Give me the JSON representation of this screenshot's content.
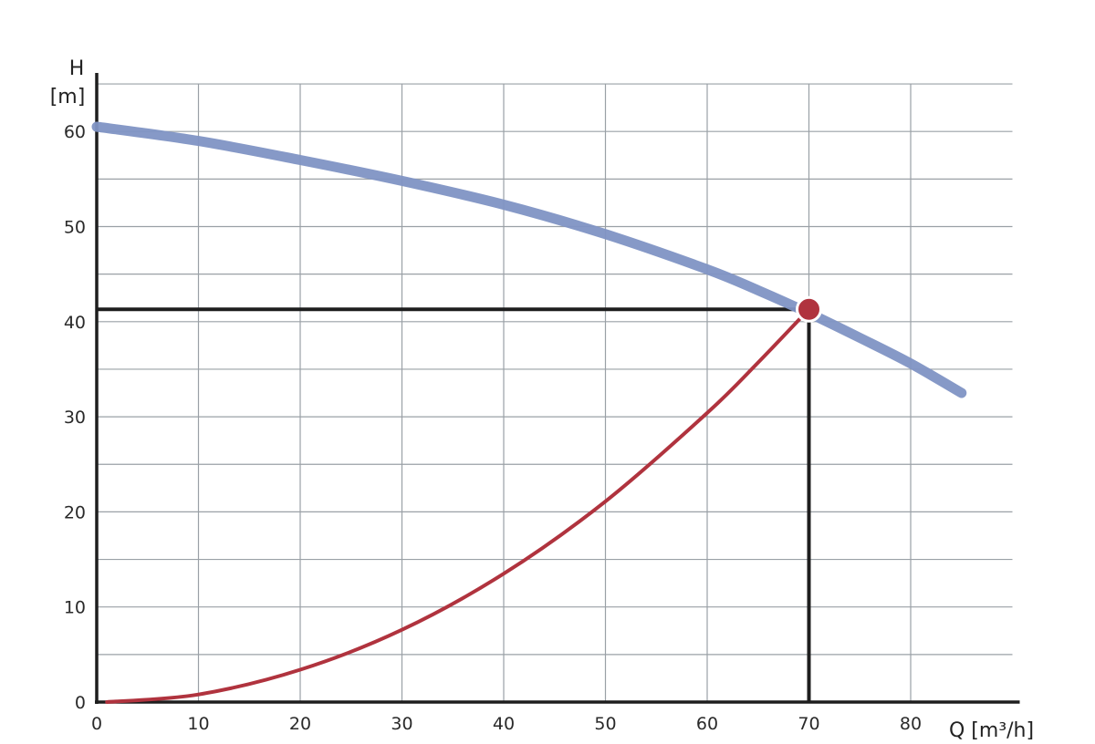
{
  "chart_data": {
    "type": "line",
    "xlabel": "Q [m³/h]",
    "ylabel_top": "H",
    "ylabel_unit": "[m]",
    "xlim": [
      0,
      90
    ],
    "ylim": [
      0,
      65
    ],
    "x_ticks": [
      0,
      10,
      20,
      30,
      40,
      50,
      60,
      70,
      80
    ],
    "y_ticks": [
      0,
      10,
      20,
      30,
      40,
      50,
      60
    ],
    "x_grid_step": 10,
    "y_grid_step": 5,
    "grid": true,
    "series": [
      {
        "color": "#7f93c4",
        "x": [
          0,
          10,
          20,
          30,
          40,
          50,
          60,
          65,
          70,
          75,
          80,
          85
        ],
        "y": [
          60.5,
          59,
          57,
          54.8,
          52.3,
          49.2,
          45.5,
          43.3,
          40.9,
          38.3,
          35.6,
          32.5
        ]
      },
      {
        "color": "#b0333e",
        "x": [
          1,
          10,
          20,
          30,
          40,
          50,
          60,
          65,
          70
        ],
        "y": [
          0,
          0.8,
          3.4,
          7.6,
          13.5,
          21.1,
          30.4,
          35.7,
          41.3
        ]
      }
    ],
    "operating_point": {
      "x": 70,
      "y": 41.3,
      "color": "#b0333e"
    }
  }
}
